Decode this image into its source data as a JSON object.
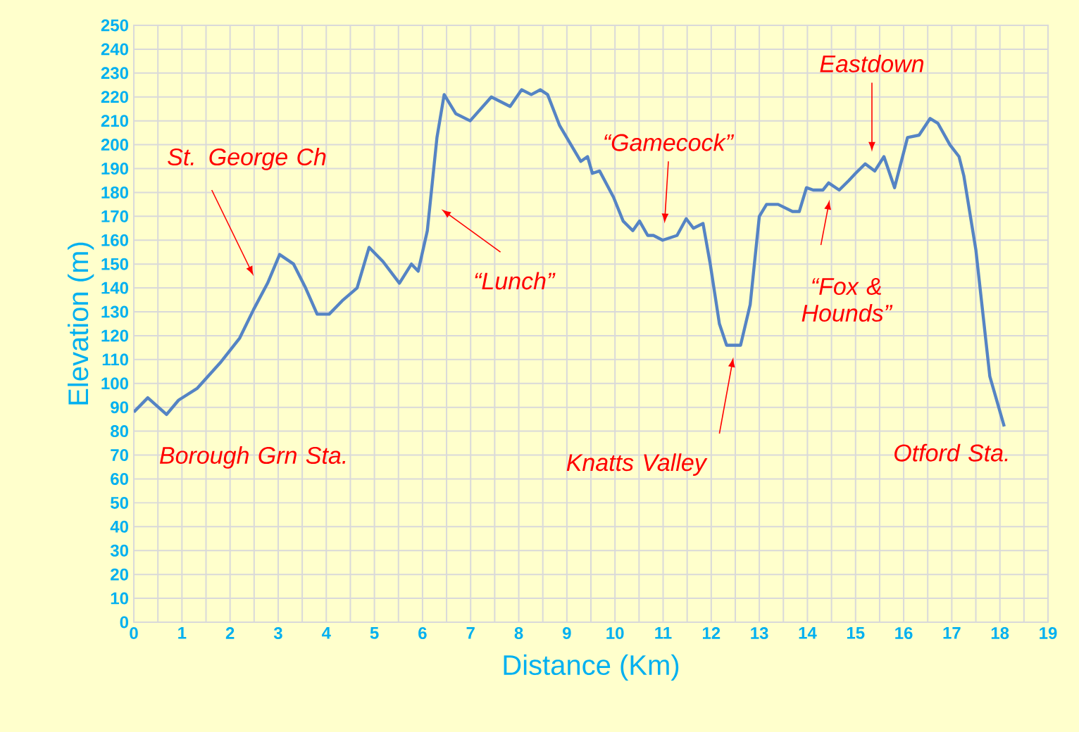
{
  "chart_data": {
    "type": "line",
    "xlabel": "Distance (Km)",
    "ylabel": "Elevation (m)",
    "xlim": [
      0,
      19
    ],
    "xticks": [
      0,
      1,
      2,
      3,
      4,
      5,
      6,
      7,
      8,
      9,
      10,
      11,
      12,
      13,
      14,
      15,
      16,
      17,
      18,
      19
    ],
    "ylim": [
      0,
      250
    ],
    "yticks": [
      0,
      10,
      20,
      30,
      40,
      50,
      60,
      70,
      80,
      90,
      100,
      110,
      120,
      130,
      140,
      150,
      160,
      170,
      180,
      190,
      200,
      210,
      220,
      230,
      240,
      250
    ],
    "grid": true,
    "marker": "none",
    "line_style": "solid",
    "series": [
      {
        "color": "#5584c4",
        "x": [
          0,
          0.29,
          0.68,
          0.93,
          1.32,
          1.81,
          2.2,
          2.49,
          2.78,
          3.03,
          3.32,
          3.57,
          3.81,
          4.06,
          4.35,
          4.64,
          4.89,
          5.18,
          5.52,
          5.77,
          5.91,
          6.1,
          6.3,
          6.45,
          6.69,
          6.99,
          7.43,
          7.82,
          8.06,
          8.26,
          8.45,
          8.6,
          8.85,
          9.29,
          9.43,
          9.53,
          9.68,
          9.97,
          10.17,
          10.37,
          10.51,
          10.68,
          10.8,
          10.99,
          11.29,
          11.48,
          11.63,
          11.83,
          11.98,
          12.17,
          12.32,
          12.61,
          12.81,
          13.0,
          13.15,
          13.39,
          13.69,
          13.83,
          13.98,
          14.12,
          14.32,
          14.44,
          14.66,
          14.86,
          15.0,
          15.2,
          15.4,
          15.59,
          15.81,
          16.08,
          16.32,
          16.55,
          16.71,
          16.96,
          17.15,
          17.25,
          17.5,
          17.79,
          18.09
        ],
        "values": [
          88,
          94,
          87,
          93,
          98,
          109,
          119,
          131,
          142,
          154,
          150,
          140,
          129,
          129,
          135,
          140,
          157,
          151,
          142,
          150,
          147,
          164,
          203,
          221,
          213,
          210,
          220,
          216,
          223,
          221,
          223,
          221,
          208,
          193,
          195,
          188,
          189,
          178,
          168,
          164,
          168,
          162,
          162,
          160,
          162,
          169,
          165,
          167,
          150,
          125,
          116,
          116,
          133,
          170,
          175,
          175,
          172,
          172,
          182,
          181,
          181,
          184,
          181,
          185,
          188,
          192,
          189,
          195,
          182,
          203,
          204,
          211,
          209,
          200,
          195,
          187,
          156,
          103,
          82
        ]
      }
    ],
    "annotations": [
      "St. George Ch",
      "“Lunch”",
      "“Gamecock”",
      "Eastdown",
      "“Fox & Hounds”",
      "Borough Grn Sta.",
      "Knatts Valley",
      "Otford Sta."
    ]
  }
}
